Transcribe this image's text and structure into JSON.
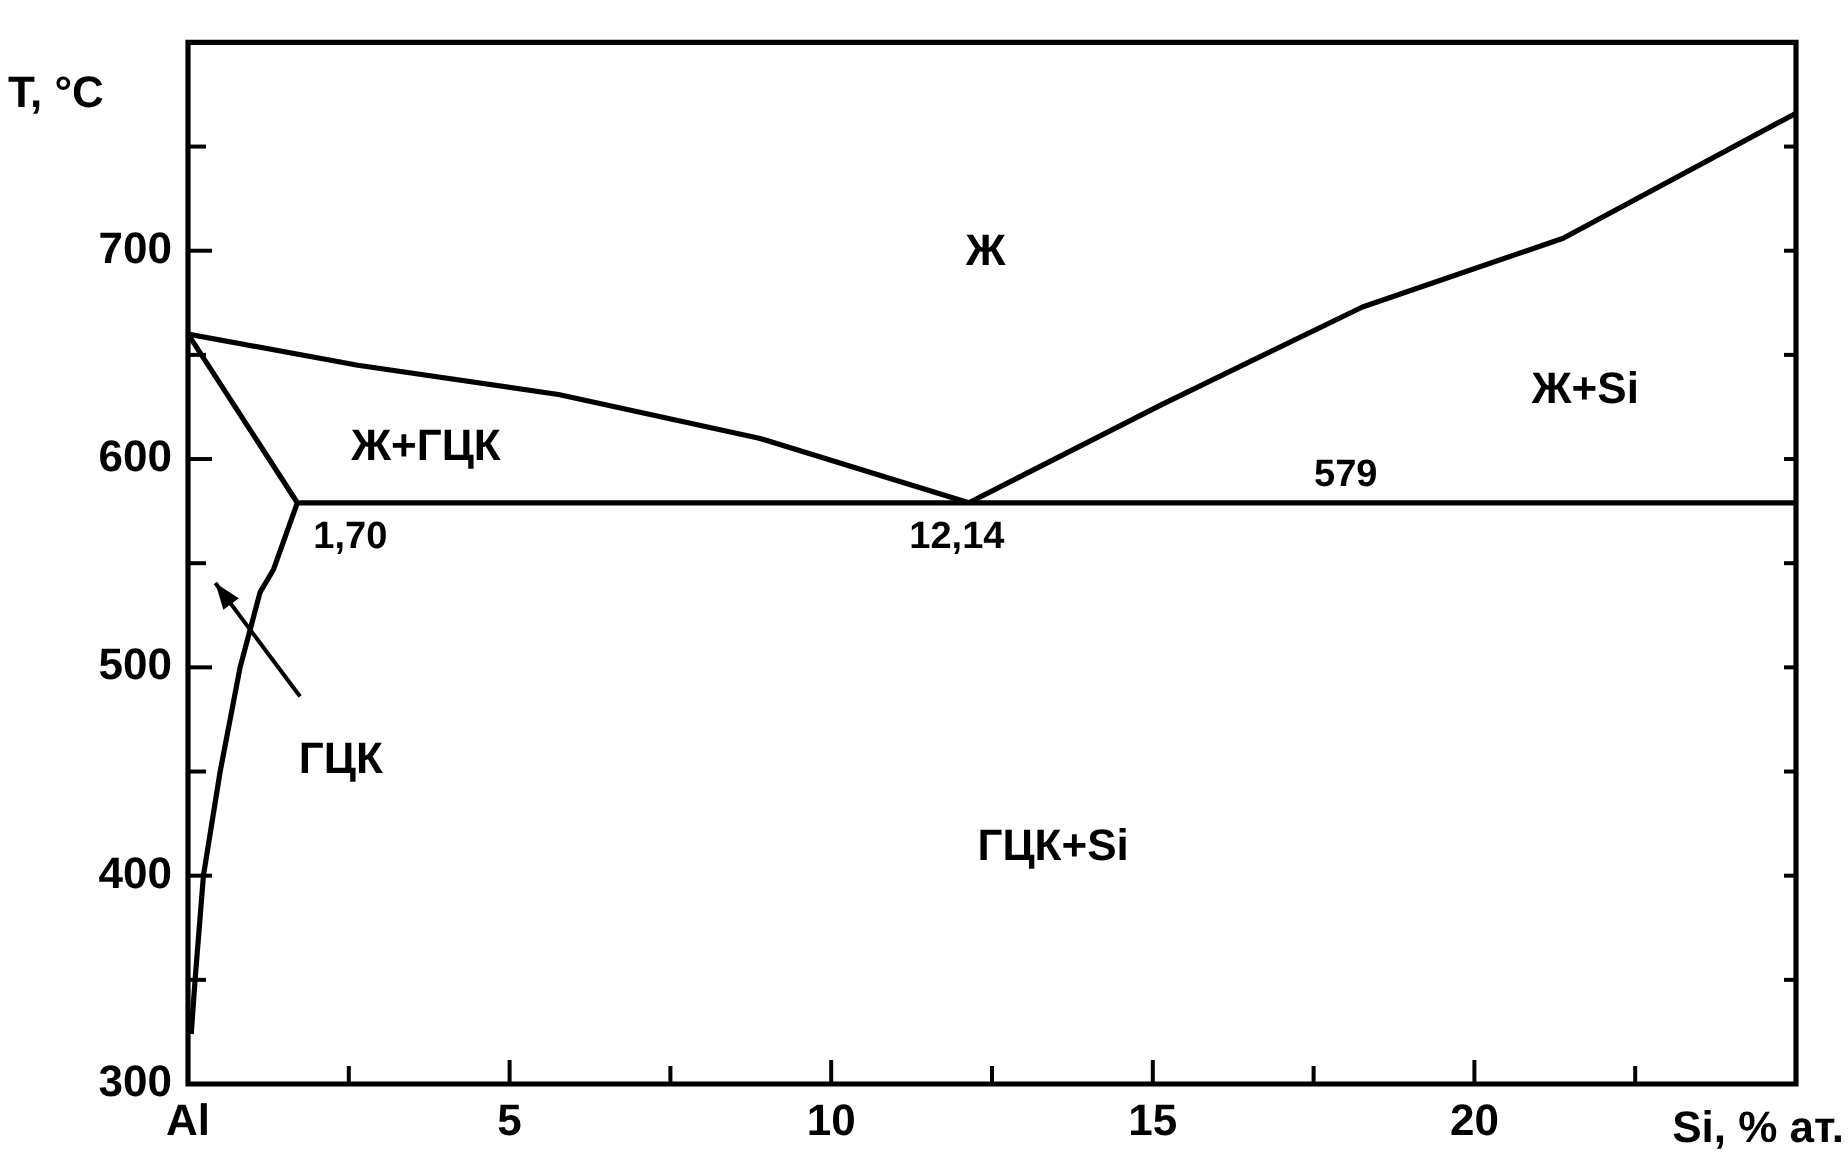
{
  "chart_data": {
    "type": "line",
    "xlabel": "Si, % ат.",
    "ylabel": "T, °C",
    "xlim": [
      0,
      25
    ],
    "ylim": [
      300,
      800
    ],
    "xticks": [
      {
        "value": 0,
        "label": "Al"
      },
      {
        "value": 2.5,
        "label": null
      },
      5,
      {
        "value": 7.5,
        "label": null
      },
      10,
      {
        "value": 12.5,
        "label": null
      },
      15,
      {
        "value": 17.5,
        "label": null
      },
      20,
      {
        "value": 22.5,
        "label": null
      }
    ],
    "yticks": [
      300,
      {
        "value": 350,
        "label": null
      },
      400,
      {
        "value": 450,
        "label": null
      },
      500,
      {
        "value": 550,
        "label": null
      },
      600,
      {
        "value": 650,
        "label": null
      },
      700,
      {
        "value": 750,
        "label": null
      }
    ],
    "series": [
      {
        "color": "#000000",
        "x": [
          0,
          2.64,
          5.76,
          8.88,
          12.14
        ],
        "values": [
          660,
          645,
          631,
          610,
          579
        ]
      },
      {
        "color": "#000000",
        "x": [
          12.14,
          15.13,
          18.26,
          21.38,
          25
        ],
        "values": [
          579,
          626,
          673,
          706,
          766
        ]
      },
      {
        "color": "#000000",
        "x": [
          0,
          1.7,
          25
        ],
        "values": [
          660,
          579,
          579
        ]
      },
      {
        "color": "#000000",
        "x": [
          1.7,
          1.33,
          1.12,
          0.81,
          0.5,
          0.24,
          0.11,
          0.05
        ],
        "values": [
          579,
          547,
          536,
          500,
          450,
          400,
          350,
          324
        ]
      }
    ],
    "annotations": [
      "Ж",
      "Ж+ГЦК",
      "Ж+Si",
      {
        "text": "579",
        "x": 18,
        "y": 579
      },
      {
        "text": "1,70",
        "x": 1.7,
        "y": 579
      },
      {
        "text": "12,14",
        "x": 12.14,
        "y": 579
      },
      "ГЦК",
      "ГЦК+Si"
    ],
    "grid": false,
    "legend": false,
    "marker": "none",
    "line_style": "solid"
  }
}
